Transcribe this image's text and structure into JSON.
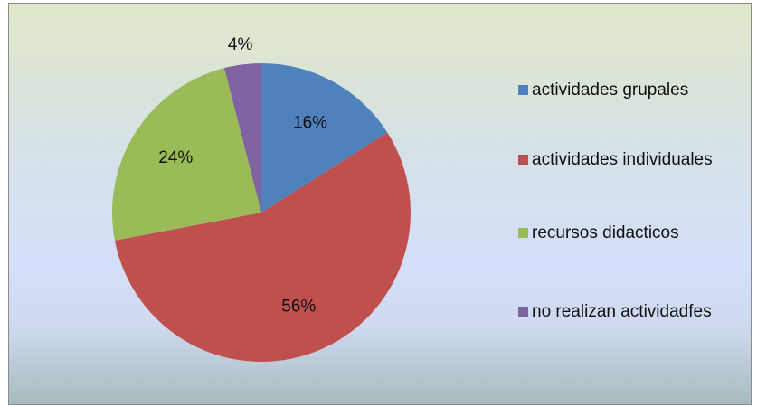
{
  "chart_data": {
    "type": "pie",
    "categories": [
      "actividades grupales",
      "actividades individuales",
      "recursos didacticos",
      "no realizan actividadfes"
    ],
    "values": [
      16,
      56,
      24,
      4
    ],
    "value_labels": [
      "16%",
      "56%",
      "24%",
      "4%"
    ],
    "colors": [
      "#4f81bd",
      "#c0504d",
      "#9bbb59",
      "#8064a2"
    ],
    "legend": "right"
  }
}
